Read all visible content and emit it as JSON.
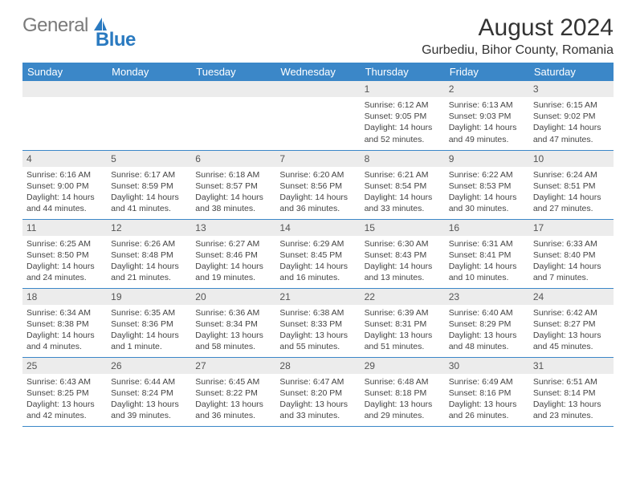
{
  "logo": {
    "word1": "General",
    "word2": "Blue"
  },
  "colors": {
    "header_bg": "#3b87c8",
    "header_fg": "#ffffff",
    "daynum_bg": "#ececec",
    "row_border": "#3b87c8",
    "logo_gray": "#7a7a7a",
    "logo_blue": "#2a7ac0",
    "page_bg": "#ffffff",
    "text": "#333333"
  },
  "title": "August 2024",
  "location": "Gurbediu, Bihor County, Romania",
  "weekdays": [
    "Sunday",
    "Monday",
    "Tuesday",
    "Wednesday",
    "Thursday",
    "Friday",
    "Saturday"
  ],
  "weeks": [
    [
      null,
      null,
      null,
      null,
      {
        "n": "1",
        "sr": "Sunrise: 6:12 AM",
        "ss": "Sunset: 9:05 PM",
        "d1": "Daylight: 14 hours",
        "d2": "and 52 minutes."
      },
      {
        "n": "2",
        "sr": "Sunrise: 6:13 AM",
        "ss": "Sunset: 9:03 PM",
        "d1": "Daylight: 14 hours",
        "d2": "and 49 minutes."
      },
      {
        "n": "3",
        "sr": "Sunrise: 6:15 AM",
        "ss": "Sunset: 9:02 PM",
        "d1": "Daylight: 14 hours",
        "d2": "and 47 minutes."
      }
    ],
    [
      {
        "n": "4",
        "sr": "Sunrise: 6:16 AM",
        "ss": "Sunset: 9:00 PM",
        "d1": "Daylight: 14 hours",
        "d2": "and 44 minutes."
      },
      {
        "n": "5",
        "sr": "Sunrise: 6:17 AM",
        "ss": "Sunset: 8:59 PM",
        "d1": "Daylight: 14 hours",
        "d2": "and 41 minutes."
      },
      {
        "n": "6",
        "sr": "Sunrise: 6:18 AM",
        "ss": "Sunset: 8:57 PM",
        "d1": "Daylight: 14 hours",
        "d2": "and 38 minutes."
      },
      {
        "n": "7",
        "sr": "Sunrise: 6:20 AM",
        "ss": "Sunset: 8:56 PM",
        "d1": "Daylight: 14 hours",
        "d2": "and 36 minutes."
      },
      {
        "n": "8",
        "sr": "Sunrise: 6:21 AM",
        "ss": "Sunset: 8:54 PM",
        "d1": "Daylight: 14 hours",
        "d2": "and 33 minutes."
      },
      {
        "n": "9",
        "sr": "Sunrise: 6:22 AM",
        "ss": "Sunset: 8:53 PM",
        "d1": "Daylight: 14 hours",
        "d2": "and 30 minutes."
      },
      {
        "n": "10",
        "sr": "Sunrise: 6:24 AM",
        "ss": "Sunset: 8:51 PM",
        "d1": "Daylight: 14 hours",
        "d2": "and 27 minutes."
      }
    ],
    [
      {
        "n": "11",
        "sr": "Sunrise: 6:25 AM",
        "ss": "Sunset: 8:50 PM",
        "d1": "Daylight: 14 hours",
        "d2": "and 24 minutes."
      },
      {
        "n": "12",
        "sr": "Sunrise: 6:26 AM",
        "ss": "Sunset: 8:48 PM",
        "d1": "Daylight: 14 hours",
        "d2": "and 21 minutes."
      },
      {
        "n": "13",
        "sr": "Sunrise: 6:27 AM",
        "ss": "Sunset: 8:46 PM",
        "d1": "Daylight: 14 hours",
        "d2": "and 19 minutes."
      },
      {
        "n": "14",
        "sr": "Sunrise: 6:29 AM",
        "ss": "Sunset: 8:45 PM",
        "d1": "Daylight: 14 hours",
        "d2": "and 16 minutes."
      },
      {
        "n": "15",
        "sr": "Sunrise: 6:30 AM",
        "ss": "Sunset: 8:43 PM",
        "d1": "Daylight: 14 hours",
        "d2": "and 13 minutes."
      },
      {
        "n": "16",
        "sr": "Sunrise: 6:31 AM",
        "ss": "Sunset: 8:41 PM",
        "d1": "Daylight: 14 hours",
        "d2": "and 10 minutes."
      },
      {
        "n": "17",
        "sr": "Sunrise: 6:33 AM",
        "ss": "Sunset: 8:40 PM",
        "d1": "Daylight: 14 hours",
        "d2": "and 7 minutes."
      }
    ],
    [
      {
        "n": "18",
        "sr": "Sunrise: 6:34 AM",
        "ss": "Sunset: 8:38 PM",
        "d1": "Daylight: 14 hours",
        "d2": "and 4 minutes."
      },
      {
        "n": "19",
        "sr": "Sunrise: 6:35 AM",
        "ss": "Sunset: 8:36 PM",
        "d1": "Daylight: 14 hours",
        "d2": "and 1 minute."
      },
      {
        "n": "20",
        "sr": "Sunrise: 6:36 AM",
        "ss": "Sunset: 8:34 PM",
        "d1": "Daylight: 13 hours",
        "d2": "and 58 minutes."
      },
      {
        "n": "21",
        "sr": "Sunrise: 6:38 AM",
        "ss": "Sunset: 8:33 PM",
        "d1": "Daylight: 13 hours",
        "d2": "and 55 minutes."
      },
      {
        "n": "22",
        "sr": "Sunrise: 6:39 AM",
        "ss": "Sunset: 8:31 PM",
        "d1": "Daylight: 13 hours",
        "d2": "and 51 minutes."
      },
      {
        "n": "23",
        "sr": "Sunrise: 6:40 AM",
        "ss": "Sunset: 8:29 PM",
        "d1": "Daylight: 13 hours",
        "d2": "and 48 minutes."
      },
      {
        "n": "24",
        "sr": "Sunrise: 6:42 AM",
        "ss": "Sunset: 8:27 PM",
        "d1": "Daylight: 13 hours",
        "d2": "and 45 minutes."
      }
    ],
    [
      {
        "n": "25",
        "sr": "Sunrise: 6:43 AM",
        "ss": "Sunset: 8:25 PM",
        "d1": "Daylight: 13 hours",
        "d2": "and 42 minutes."
      },
      {
        "n": "26",
        "sr": "Sunrise: 6:44 AM",
        "ss": "Sunset: 8:24 PM",
        "d1": "Daylight: 13 hours",
        "d2": "and 39 minutes."
      },
      {
        "n": "27",
        "sr": "Sunrise: 6:45 AM",
        "ss": "Sunset: 8:22 PM",
        "d1": "Daylight: 13 hours",
        "d2": "and 36 minutes."
      },
      {
        "n": "28",
        "sr": "Sunrise: 6:47 AM",
        "ss": "Sunset: 8:20 PM",
        "d1": "Daylight: 13 hours",
        "d2": "and 33 minutes."
      },
      {
        "n": "29",
        "sr": "Sunrise: 6:48 AM",
        "ss": "Sunset: 8:18 PM",
        "d1": "Daylight: 13 hours",
        "d2": "and 29 minutes."
      },
      {
        "n": "30",
        "sr": "Sunrise: 6:49 AM",
        "ss": "Sunset: 8:16 PM",
        "d1": "Daylight: 13 hours",
        "d2": "and 26 minutes."
      },
      {
        "n": "31",
        "sr": "Sunrise: 6:51 AM",
        "ss": "Sunset: 8:14 PM",
        "d1": "Daylight: 13 hours",
        "d2": "and 23 minutes."
      }
    ]
  ]
}
